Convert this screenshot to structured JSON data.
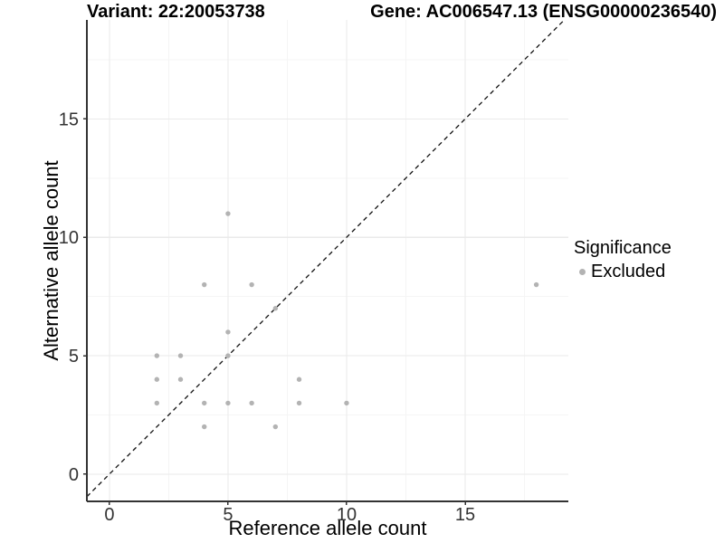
{
  "chart_data": {
    "type": "scatter",
    "title_left": "Variant: 22:20053738",
    "title_right": "Gene: AC006547.13 (ENSG00000236540)",
    "xlabel": "Reference allele count",
    "ylabel": "Alternative allele count",
    "x_ticks": [
      0,
      5,
      10,
      15
    ],
    "y_ticks": [
      0,
      5,
      10,
      15
    ],
    "x_minor": [
      2.5,
      7.5,
      12.5,
      17.5
    ],
    "y_minor": [
      2.5,
      7.5,
      12.5,
      17.5
    ],
    "xlim": [
      -0.95,
      19.35
    ],
    "ylim": [
      -1.15,
      19.18
    ],
    "grid": true,
    "legend_position": "right",
    "identity_line": {
      "slope": 1,
      "intercept": 0,
      "style": "dashed",
      "color": "#111111"
    },
    "series": [
      {
        "name": "Excluded",
        "color": "#b3b3b3",
        "points": [
          [
            2,
            3
          ],
          [
            2,
            4
          ],
          [
            2,
            5
          ],
          [
            3,
            4
          ],
          [
            3,
            5
          ],
          [
            4,
            2
          ],
          [
            4,
            3
          ],
          [
            4,
            8
          ],
          [
            5,
            3
          ],
          [
            5,
            5
          ],
          [
            5,
            6
          ],
          [
            5,
            11
          ],
          [
            6,
            3
          ],
          [
            6,
            8
          ],
          [
            7,
            2
          ],
          [
            7,
            7
          ],
          [
            8,
            3
          ],
          [
            8,
            4
          ],
          [
            10,
            3
          ],
          [
            18,
            8
          ]
        ]
      }
    ],
    "legend": {
      "title": "Significance",
      "items": [
        {
          "label": "Excluded",
          "color": "#b3b3b3"
        }
      ]
    },
    "colors": {
      "grid_major": "#eaeaea",
      "grid_minor": "#f5f5f5",
      "axis": "#333333",
      "tick_text": "#333333"
    }
  }
}
